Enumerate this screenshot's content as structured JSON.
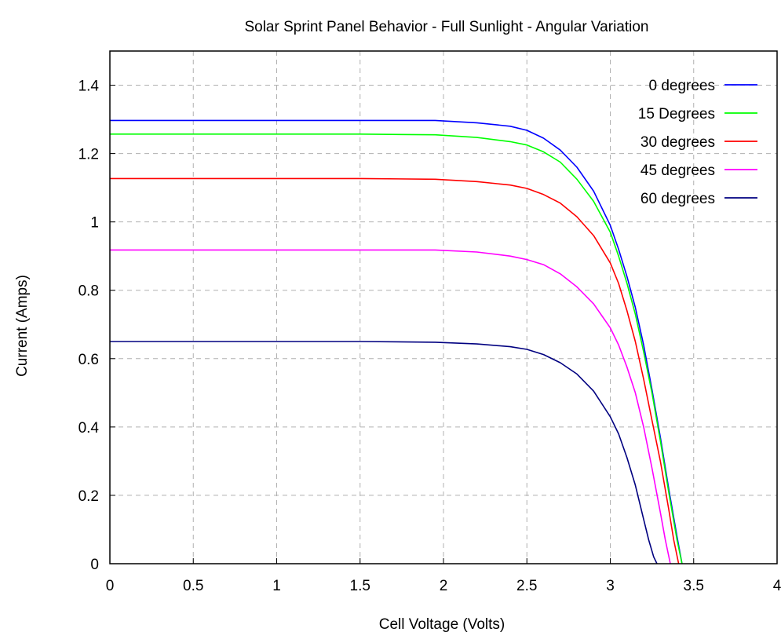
{
  "chart_data": {
    "type": "line",
    "title": "Solar Sprint Panel Behavior - Full Sunlight - Angular Variation",
    "xlabel": "Cell Voltage (Volts)",
    "ylabel": "Current (Amps)",
    "xlim": [
      0,
      4
    ],
    "ylim": [
      0,
      1.5
    ],
    "xticks": [
      "0",
      "0.5",
      "1",
      "1.5",
      "2",
      "2.5",
      "3",
      "3.5",
      "4"
    ],
    "yticks": [
      "0",
      "0.2",
      "0.4",
      "0.6",
      "0.8",
      "1",
      "1.2",
      "1.4"
    ],
    "grid": true,
    "legend_position": "top-right",
    "series": [
      {
        "name": "0 degrees",
        "color": "#0000ff",
        "x": [
          0,
          0.5,
          1.0,
          1.5,
          1.95,
          2.2,
          2.4,
          2.5,
          2.6,
          2.7,
          2.8,
          2.9,
          3.0,
          3.05,
          3.1,
          3.15,
          3.2,
          3.25,
          3.3,
          3.35,
          3.4,
          3.43
        ],
        "y": [
          1.297,
          1.297,
          1.297,
          1.297,
          1.297,
          1.29,
          1.28,
          1.268,
          1.245,
          1.21,
          1.16,
          1.09,
          0.99,
          0.92,
          0.84,
          0.75,
          0.64,
          0.51,
          0.37,
          0.22,
          0.08,
          0
        ]
      },
      {
        "name": "15 Degrees",
        "color": "#00ff00",
        "x": [
          0,
          0.5,
          1.0,
          1.5,
          1.95,
          2.2,
          2.4,
          2.5,
          2.6,
          2.7,
          2.8,
          2.9,
          3.0,
          3.05,
          3.1,
          3.15,
          3.2,
          3.25,
          3.3,
          3.35,
          3.4,
          3.43
        ],
        "y": [
          1.257,
          1.257,
          1.257,
          1.257,
          1.255,
          1.247,
          1.235,
          1.225,
          1.205,
          1.175,
          1.125,
          1.06,
          0.97,
          0.9,
          0.82,
          0.73,
          0.62,
          0.5,
          0.36,
          0.21,
          0.07,
          0
        ]
      },
      {
        "name": "30 degrees",
        "color": "#ff0000",
        "x": [
          0,
          0.5,
          1.0,
          1.5,
          1.95,
          2.2,
          2.4,
          2.5,
          2.6,
          2.7,
          2.8,
          2.9,
          3.0,
          3.05,
          3.1,
          3.15,
          3.2,
          3.25,
          3.3,
          3.35,
          3.38,
          3.41
        ],
        "y": [
          1.127,
          1.127,
          1.127,
          1.127,
          1.125,
          1.118,
          1.108,
          1.098,
          1.08,
          1.055,
          1.015,
          0.96,
          0.88,
          0.82,
          0.74,
          0.65,
          0.54,
          0.42,
          0.3,
          0.16,
          0.07,
          0
        ]
      },
      {
        "name": "45 degrees",
        "color": "#ff00ff",
        "x": [
          0,
          0.5,
          1.0,
          1.5,
          1.95,
          2.2,
          2.4,
          2.5,
          2.6,
          2.7,
          2.8,
          2.9,
          3.0,
          3.05,
          3.1,
          3.15,
          3.2,
          3.25,
          3.3,
          3.33,
          3.36
        ],
        "y": [
          0.918,
          0.918,
          0.918,
          0.918,
          0.918,
          0.912,
          0.9,
          0.89,
          0.875,
          0.848,
          0.81,
          0.76,
          0.69,
          0.64,
          0.575,
          0.5,
          0.4,
          0.28,
          0.15,
          0.07,
          0
        ]
      },
      {
        "name": "60 degrees",
        "color": "#000080",
        "x": [
          0,
          0.5,
          1.0,
          1.5,
          1.95,
          2.2,
          2.4,
          2.5,
          2.6,
          2.7,
          2.8,
          2.9,
          3.0,
          3.05,
          3.1,
          3.15,
          3.2,
          3.23,
          3.26,
          3.28
        ],
        "y": [
          0.65,
          0.65,
          0.65,
          0.65,
          0.648,
          0.643,
          0.635,
          0.627,
          0.612,
          0.588,
          0.555,
          0.505,
          0.43,
          0.38,
          0.31,
          0.23,
          0.13,
          0.07,
          0.02,
          0
        ]
      }
    ]
  }
}
